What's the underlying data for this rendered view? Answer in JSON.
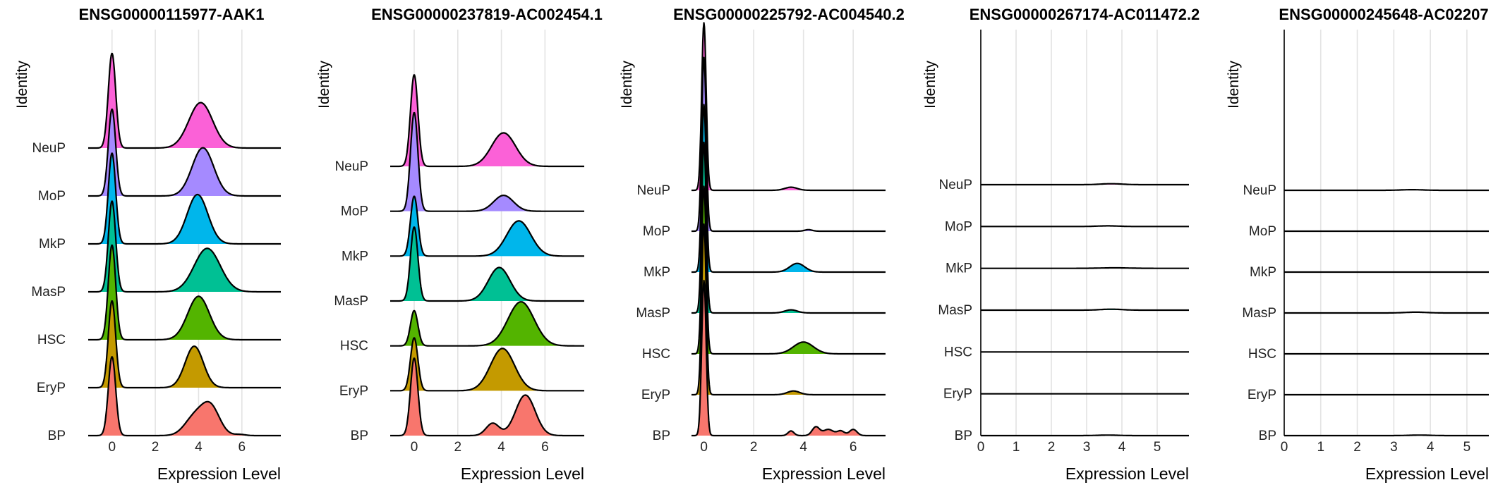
{
  "chart_data": [
    {
      "type": "ridgeline",
      "title": "ENSG00000115977-AAK1",
      "xlabel": "Expression Level",
      "ylabel": "Identity",
      "categories": [
        "BP",
        "EryP",
        "HSC",
        "MasP",
        "MkP",
        "MoP",
        "NeuP"
      ],
      "xlim": [
        -1.1,
        7.8
      ],
      "xticks": [
        0,
        2,
        4,
        6
      ],
      "series": [
        {
          "name": "BP",
          "color": "#F8766D",
          "zero_peak": 0.0,
          "zero_height": 2.0,
          "zero_sd": 0.17,
          "expr_components": [
            [
              3.8,
              0.45,
              0.45
            ],
            [
              4.55,
              0.42,
              0.72
            ],
            [
              5.9,
              0.25,
              0.03
            ]
          ]
        },
        {
          "name": "EryP",
          "color": "#C49A00",
          "zero_peak": 0.0,
          "zero_height": 2.2,
          "zero_sd": 0.17,
          "expr_components": [
            [
              3.8,
              0.42,
              1.05
            ]
          ]
        },
        {
          "name": "HSC",
          "color": "#53B400",
          "zero_peak": 0.0,
          "zero_height": 2.4,
          "zero_sd": 0.17,
          "expr_components": [
            [
              4.0,
              0.5,
              1.1
            ]
          ]
        },
        {
          "name": "MasP",
          "color": "#00C094",
          "zero_peak": 0.0,
          "zero_height": 2.3,
          "zero_sd": 0.17,
          "expr_components": [
            [
              4.4,
              0.6,
              1.1
            ]
          ]
        },
        {
          "name": "MkP",
          "color": "#00B6EB",
          "zero_peak": 0.0,
          "zero_height": 2.3,
          "zero_sd": 0.17,
          "expr_components": [
            [
              3.95,
              0.48,
              1.25
            ]
          ]
        },
        {
          "name": "MoP",
          "color": "#A58AFF",
          "zero_peak": 0.0,
          "zero_height": 2.2,
          "zero_sd": 0.17,
          "expr_components": [
            [
              4.2,
              0.5,
              1.22
            ]
          ]
        },
        {
          "name": "NeuP",
          "color": "#FB61D7",
          "zero_peak": 0.0,
          "zero_height": 2.4,
          "zero_sd": 0.17,
          "expr_components": [
            [
              4.1,
              0.55,
              1.15
            ]
          ]
        }
      ]
    },
    {
      "type": "ridgeline",
      "title": "ENSG00000237819-AC002454.1",
      "xlabel": "Expression Level",
      "ylabel": "Identity",
      "categories": [
        "BP",
        "EryP",
        "HSC",
        "MasP",
        "MkP",
        "MoP",
        "NeuP"
      ],
      "xlim": [
        -1.1,
        7.8
      ],
      "xticks": [
        0,
        2,
        4,
        6
      ],
      "series": [
        {
          "name": "BP",
          "color": "#F8766D",
          "zero_peak": 0.0,
          "zero_height": 2.2,
          "zero_sd": 0.17,
          "expr_components": [
            [
              3.6,
              0.3,
              0.35
            ],
            [
              5.1,
              0.45,
              1.15
            ]
          ]
        },
        {
          "name": "EryP",
          "color": "#C49A00",
          "zero_peak": 0.0,
          "zero_height": 1.5,
          "zero_sd": 0.17,
          "expr_components": [
            [
              4.05,
              0.55,
              1.2
            ]
          ]
        },
        {
          "name": "HSC",
          "color": "#53B400",
          "zero_peak": 0.0,
          "zero_height": 1.0,
          "zero_sd": 0.17,
          "expr_components": [
            [
              4.9,
              0.6,
              1.25
            ]
          ]
        },
        {
          "name": "MasP",
          "color": "#00C094",
          "zero_peak": 0.0,
          "zero_height": 2.1,
          "zero_sd": 0.17,
          "expr_components": [
            [
              3.9,
              0.5,
              0.95
            ]
          ]
        },
        {
          "name": "MkP",
          "color": "#00B6EB",
          "zero_peak": 0.0,
          "zero_height": 1.7,
          "zero_sd": 0.17,
          "expr_components": [
            [
              4.8,
              0.55,
              1.0
            ]
          ]
        },
        {
          "name": "MoP",
          "color": "#A58AFF",
          "zero_peak": 0.0,
          "zero_height": 2.8,
          "zero_sd": 0.17,
          "expr_components": [
            [
              4.1,
              0.45,
              0.45
            ]
          ]
        },
        {
          "name": "NeuP",
          "color": "#FB61D7",
          "zero_peak": 0.0,
          "zero_height": 2.6,
          "zero_sd": 0.17,
          "expr_components": [
            [
              4.1,
              0.55,
              0.95
            ]
          ]
        }
      ]
    },
    {
      "type": "ridgeline",
      "title": "ENSG00000225792-AC004540.2",
      "xlabel": "Expression Level",
      "ylabel": "Identity",
      "categories": [
        "BP",
        "EryP",
        "HSC",
        "MasP",
        "MkP",
        "MoP",
        "NeuP"
      ],
      "xlim": [
        -0.5,
        7.3
      ],
      "xticks": [
        0,
        2,
        4,
        6
      ],
      "series": [
        {
          "name": "BP",
          "color": "#F8766D",
          "zero_peak": 0.0,
          "zero_height": 5.0,
          "zero_sd": 0.09,
          "expr_components": [
            [
              3.5,
              0.12,
              0.15
            ],
            [
              4.5,
              0.15,
              0.28
            ],
            [
              5.0,
              0.2,
              0.2
            ],
            [
              5.5,
              0.15,
              0.15
            ],
            [
              6.0,
              0.15,
              0.2
            ]
          ]
        },
        {
          "name": "EryP",
          "color": "#C49A00",
          "zero_peak": 0.0,
          "zero_height": 5.5,
          "zero_sd": 0.09,
          "expr_components": [
            [
              3.6,
              0.25,
              0.12
            ]
          ]
        },
        {
          "name": "HSC",
          "color": "#53B400",
          "zero_peak": 0.0,
          "zero_height": 5.4,
          "zero_sd": 0.09,
          "expr_components": [
            [
              4.0,
              0.4,
              0.38
            ]
          ]
        },
        {
          "name": "MasP",
          "color": "#00C094",
          "zero_peak": 0.0,
          "zero_height": 5.5,
          "zero_sd": 0.09,
          "expr_components": [
            [
              3.5,
              0.25,
              0.1
            ]
          ]
        },
        {
          "name": "MkP",
          "color": "#00B6EB",
          "zero_peak": 0.0,
          "zero_height": 5.4,
          "zero_sd": 0.09,
          "expr_components": [
            [
              3.75,
              0.3,
              0.28
            ]
          ]
        },
        {
          "name": "MoP",
          "color": "#A58AFF",
          "zero_peak": 0.0,
          "zero_height": 5.6,
          "zero_sd": 0.09,
          "expr_components": [
            [
              4.2,
              0.15,
              0.05
            ]
          ]
        },
        {
          "name": "NeuP",
          "color": "#FB61D7",
          "zero_peak": 0.0,
          "zero_height": 5.4,
          "zero_sd": 0.09,
          "expr_components": [
            [
              3.5,
              0.25,
              0.1
            ]
          ]
        }
      ]
    },
    {
      "type": "ridgeline",
      "title": "ENSG00000267174-AC011472.2",
      "xlabel": "Expression Level",
      "ylabel": "Identity",
      "categories": [
        "BP",
        "EryP",
        "HSC",
        "MasP",
        "MkP",
        "MoP",
        "NeuP"
      ],
      "xlim": [
        0,
        5.9
      ],
      "xticks": [
        0,
        1,
        2,
        3,
        4,
        5
      ],
      "series": [
        {
          "name": "BP",
          "color": "#F8766D",
          "zero_peak": 0.0,
          "zero_height": 0.0,
          "zero_sd": 0.05,
          "expr_components": [
            [
              3.6,
              0.3,
              0.015
            ]
          ]
        },
        {
          "name": "EryP",
          "color": "#C49A00",
          "zero_peak": 0.0,
          "zero_height": 0.0,
          "zero_sd": 0.05,
          "expr_components": []
        },
        {
          "name": "HSC",
          "color": "#53B400",
          "zero_peak": 0.0,
          "zero_height": 0.0,
          "zero_sd": 0.05,
          "expr_components": []
        },
        {
          "name": "MasP",
          "color": "#00C094",
          "zero_peak": 0.0,
          "zero_height": 0.0,
          "zero_sd": 0.05,
          "expr_components": [
            [
              3.7,
              0.3,
              0.03
            ]
          ]
        },
        {
          "name": "MkP",
          "color": "#00B6EB",
          "zero_peak": 0.0,
          "zero_height": 0.0,
          "zero_sd": 0.05,
          "expr_components": [
            [
              3.8,
              0.4,
              0.015
            ]
          ]
        },
        {
          "name": "MoP",
          "color": "#A58AFF",
          "zero_peak": 0.0,
          "zero_height": 0.0,
          "zero_sd": 0.05,
          "expr_components": [
            [
              3.6,
              0.3,
              0.02
            ]
          ]
        },
        {
          "name": "NeuP",
          "color": "#FB61D7",
          "zero_peak": 0.0,
          "zero_height": 0.0,
          "zero_sd": 0.05,
          "expr_components": [
            [
              3.7,
              0.3,
              0.03
            ]
          ]
        }
      ]
    },
    {
      "type": "ridgeline",
      "title": "ENSG00000245648-AC02207",
      "xlabel": "Expression Level",
      "ylabel": "Identity",
      "categories": [
        "BP",
        "EryP",
        "HSC",
        "MasP",
        "MkP",
        "MoP",
        "NeuP"
      ],
      "xlim": [
        0,
        5.6
      ],
      "xticks": [
        0,
        1,
        2,
        3,
        4,
        5
      ],
      "series": [
        {
          "name": "BP",
          "color": "#F8766D",
          "zero_peak": 0.0,
          "zero_height": 0.0,
          "zero_sd": 0.05,
          "expr_components": [
            [
              3.7,
              0.3,
              0.015
            ]
          ]
        },
        {
          "name": "EryP",
          "color": "#C49A00",
          "zero_peak": 0.0,
          "zero_height": 0.0,
          "zero_sd": 0.05,
          "expr_components": []
        },
        {
          "name": "HSC",
          "color": "#53B400",
          "zero_peak": 0.0,
          "zero_height": 0.0,
          "zero_sd": 0.05,
          "expr_components": []
        },
        {
          "name": "MasP",
          "color": "#00C094",
          "zero_peak": 0.0,
          "zero_height": 0.0,
          "zero_sd": 0.05,
          "expr_components": [
            [
              3.6,
              0.3,
              0.025
            ]
          ]
        },
        {
          "name": "MkP",
          "color": "#00B6EB",
          "zero_peak": 0.0,
          "zero_height": 0.0,
          "zero_sd": 0.05,
          "expr_components": []
        },
        {
          "name": "MoP",
          "color": "#A58AFF",
          "zero_peak": 0.0,
          "zero_height": 0.0,
          "zero_sd": 0.05,
          "expr_components": []
        },
        {
          "name": "NeuP",
          "color": "#FB61D7",
          "zero_peak": 0.0,
          "zero_height": 0.0,
          "zero_sd": 0.05,
          "expr_components": [
            [
              3.5,
              0.3,
              0.02
            ]
          ]
        }
      ]
    }
  ]
}
